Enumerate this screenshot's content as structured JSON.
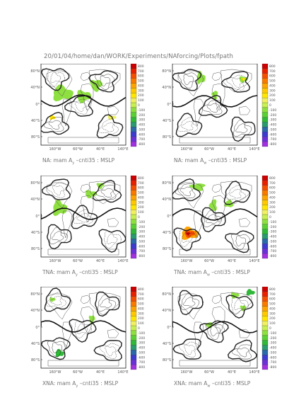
{
  "header": {
    "path": "20/01/04/home/dan/WORK/Experiments/NAforcing/Plots/fpath"
  },
  "axes": {
    "lat_labels": [
      "80°N",
      "40°N",
      "0°",
      "40°S",
      "80°S"
    ],
    "lon_labels": [
      "160°W",
      "60°W",
      "40°E",
      "140°E"
    ]
  },
  "colorbar": {
    "labels": [
      "800",
      "700",
      "600",
      "500",
      "400",
      "300",
      "200",
      "100",
      "0",
      "-100",
      "-200",
      "-300",
      "-400",
      "-500",
      "-600",
      "-700",
      "-800"
    ],
    "colors": [
      "#cc0000",
      "#e82000",
      "#f44e00",
      "#fa7a00",
      "#ffa300",
      "#ffc800",
      "#ffe600",
      "#f0f060",
      "#c8f050",
      "#8ee040",
      "#5ad034",
      "#30b838",
      "#2a9a70",
      "#2a6aa8",
      "#3b3bd0",
      "#6a30d8",
      "#a030e0"
    ]
  },
  "panels": [
    {
      "id": "na-left",
      "caption_pre": "NA: mam A",
      "caption_sub": "y",
      "caption_post": " –cnti35 : MSLP"
    },
    {
      "id": "na-right",
      "caption_pre": "NA: mam A",
      "caption_sub": "w",
      "caption_post": " –cnti35 : MSLP"
    },
    {
      "id": "tna-left",
      "caption_pre": "TNA: mam A",
      "caption_sub": "y",
      "caption_post": " –cnti35 : MSLP"
    },
    {
      "id": "tna-right",
      "caption_pre": "TNA: mam A",
      "caption_sub": "w",
      "caption_post": " –cnti35 : MSLP"
    },
    {
      "id": "xna-left",
      "caption_pre": "XNA: mam A",
      "caption_sub": "y",
      "caption_post": " –cnti35 : MSLP"
    },
    {
      "id": "xna-right",
      "caption_pre": "XNA: mam A",
      "caption_sub": "w",
      "caption_post": " –cnti35 : MSLP"
    }
  ]
}
